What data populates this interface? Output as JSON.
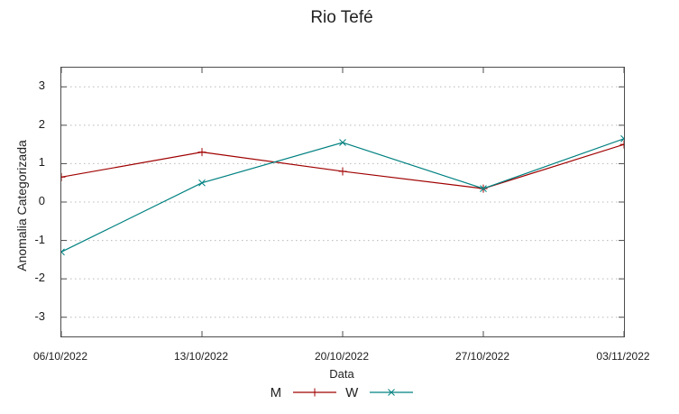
{
  "title": "Rio Tefé",
  "chart_data": {
    "type": "line",
    "title": "Rio Tefé",
    "xlabel": "Data",
    "ylabel": "Anomalia Categorizada",
    "categories": [
      "06/10/2022",
      "13/10/2022",
      "20/10/2022",
      "27/10/2022",
      "03/11/2022"
    ],
    "series": [
      {
        "name": "M",
        "color": "#a00000",
        "marker": "plus",
        "values": [
          0.65,
          1.3,
          0.8,
          0.35,
          1.5
        ]
      },
      {
        "name": "W",
        "color": "#008080",
        "marker": "cross",
        "values": [
          -1.3,
          0.5,
          1.55,
          0.35,
          1.65
        ]
      }
    ],
    "ylim": [
      -3.5,
      3.5
    ],
    "yticks": [
      3,
      2,
      1,
      0,
      -1,
      -2,
      -3
    ],
    "grid": "horizontal-dotted",
    "legend_position": "bottom-center",
    "colors": {
      "border": "#4d4d4d",
      "gridline": "#b9b9b9",
      "text": "#1c1c1c"
    }
  }
}
